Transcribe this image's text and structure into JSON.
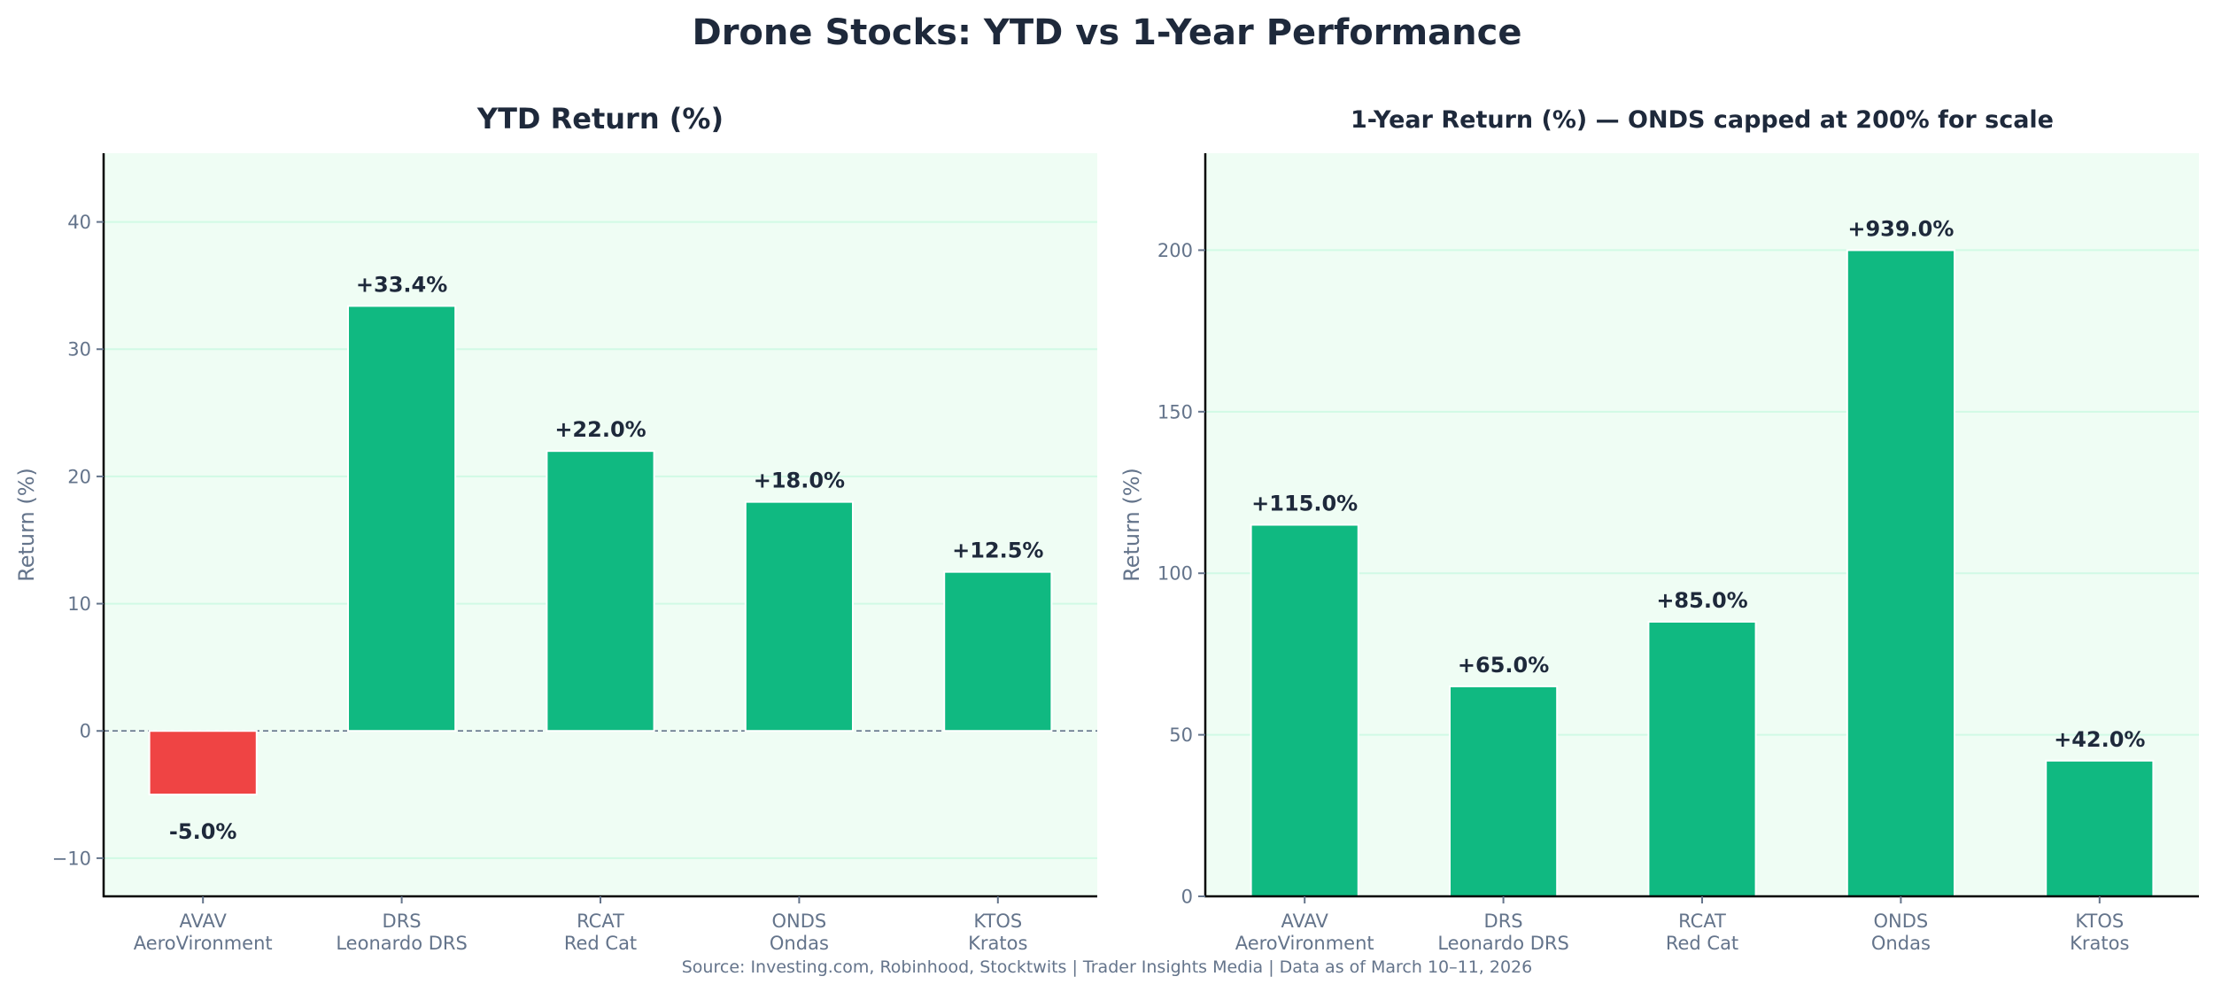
{
  "title": "Drone Stocks: YTD vs 1-Year Performance",
  "source": "Source: Investing.com, Robinhood, Stocktwits | Trader Insights Media | Data as of March 10–11, 2026",
  "colors": {
    "positive": "#10b981",
    "negative": "#ef4444",
    "plot_bg": "#effdf4",
    "grid": "#d1fae5",
    "text": "#1e293b",
    "muted": "#64748b"
  },
  "chart_data": [
    {
      "type": "bar",
      "title": "YTD Return (%)",
      "xlabel": "",
      "ylabel": "Return (%)",
      "categories": [
        {
          "ticker": "AVAV",
          "name": "AeroVironment"
        },
        {
          "ticker": "DRS",
          "name": "Leonardo DRS"
        },
        {
          "ticker": "RCAT",
          "name": "Red Cat"
        },
        {
          "ticker": "ONDS",
          "name": "Ondas"
        },
        {
          "ticker": "KTOS",
          "name": "Kratos"
        }
      ],
      "values": [
        -5.0,
        33.4,
        22.0,
        18.0,
        12.5
      ],
      "data_labels": [
        "-5.0%",
        "+33.4%",
        "+22.0%",
        "+18.0%",
        "+12.5%"
      ],
      "ylim": [
        -13,
        45.4
      ],
      "yticks": [
        -10,
        0,
        10,
        20,
        30,
        40
      ],
      "ytick_labels": [
        "−10",
        "0",
        "10",
        "20",
        "30",
        "40"
      ],
      "zero_line": "dashed",
      "grid": true
    },
    {
      "type": "bar",
      "title": "1-Year Return (%) — ONDS capped at 200% for scale",
      "xlabel": "",
      "ylabel": "Return (%)",
      "categories": [
        {
          "ticker": "AVAV",
          "name": "AeroVironment"
        },
        {
          "ticker": "DRS",
          "name": "Leonardo DRS"
        },
        {
          "ticker": "RCAT",
          "name": "Red Cat"
        },
        {
          "ticker": "ONDS",
          "name": "Ondas"
        },
        {
          "ticker": "KTOS",
          "name": "Kratos"
        }
      ],
      "values": [
        115.0,
        65.0,
        85.0,
        939.0,
        42.0
      ],
      "display_values": [
        115.0,
        65.0,
        85.0,
        200.0,
        42.0
      ],
      "data_labels": [
        "+115.0%",
        "+65.0%",
        "+85.0%",
        "+939.0%",
        "+42.0%"
      ],
      "ylim": [
        0,
        230
      ],
      "yticks": [
        0,
        50,
        100,
        150,
        200
      ],
      "ytick_labels": [
        "0",
        "50",
        "100",
        "150",
        "200"
      ],
      "grid": true
    }
  ]
}
